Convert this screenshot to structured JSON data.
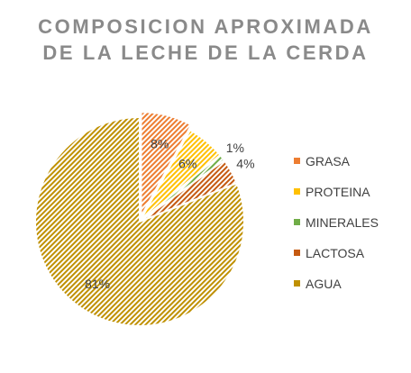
{
  "chart_data": {
    "type": "pie",
    "title_lines": [
      "COMPOSICION APROXIMADA",
      "DE LA LECHE DE LA CERDA"
    ],
    "slices": [
      {
        "label": "GRASA",
        "value": 8,
        "data_label": "8%",
        "color": "#ed7d31"
      },
      {
        "label": "PROTEINA",
        "value": 6,
        "data_label": "6%",
        "color": "#ffc000"
      },
      {
        "label": "MINERALES",
        "value": 1,
        "data_label": "1%",
        "color": "#70ad47"
      },
      {
        "label": "LACTOSA",
        "value": 4,
        "data_label": "4%",
        "color": "#c55a11"
      },
      {
        "label": "AGUA",
        "value": 81,
        "data_label": "81%",
        "color": "#bf9000"
      }
    ],
    "exploded": "GRASA",
    "legend_position": "right"
  }
}
